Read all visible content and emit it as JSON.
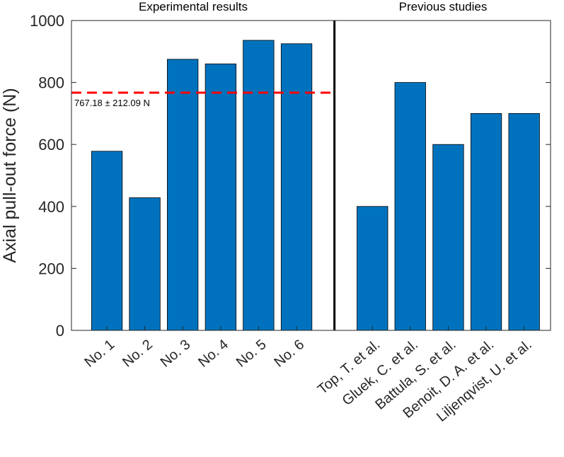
{
  "chart_data": {
    "type": "bar",
    "ylabel": "Axial pull-out force (N)",
    "ylim": [
      0,
      1000
    ],
    "yticks": [
      0,
      200,
      400,
      600,
      800,
      1000
    ],
    "bar_color": "#0072BD",
    "groups": [
      {
        "title": "Experimental results",
        "categories": [
          "No. 1",
          "No. 2",
          "No. 3",
          "No. 4",
          "No. 5",
          "No. 6"
        ],
        "values": [
          578,
          428,
          875,
          860,
          936,
          925
        ]
      },
      {
        "title": "Previous studies",
        "categories": [
          "Top, T. et al.",
          "Gluek, C. et al.",
          "Battula, S. et al.",
          "Benoit, D. A. et al.",
          "Liljenqvist, U. et al."
        ],
        "values": [
          400,
          800,
          600,
          700,
          700
        ]
      }
    ],
    "reference_line": {
      "value": 767.18,
      "label": "767.18 ± 212.09 N",
      "color": "#FF0000",
      "style": "dashed"
    }
  }
}
